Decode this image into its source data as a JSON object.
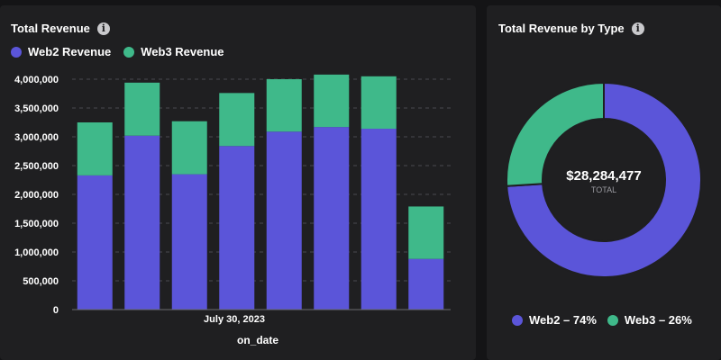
{
  "colors": {
    "web2": "#5b55d9",
    "web3": "#3fb98a",
    "background": "#1f1f21"
  },
  "left_card": {
    "title": "Total Revenue",
    "info_icon": "info-icon"
  },
  "right_card": {
    "title": "Total Revenue by Type",
    "info_icon": "info-icon",
    "center_value": "$28,284,477",
    "center_label": "TOTAL",
    "legend": [
      "Web2 – 74%",
      "Web3 – 26%"
    ]
  },
  "chart_data": [
    {
      "type": "bar",
      "stacked": true,
      "title": "Total Revenue",
      "xlabel": "on_date",
      "x_tick_label": "July 30, 2023",
      "ylabel": "",
      "ylim": [
        0,
        4000000
      ],
      "y_ticks": [
        "4,000,000",
        "3,500,000",
        "3,000,000",
        "2,500,000",
        "2,000,000",
        "1,500,000",
        "1,000,000",
        "500,000",
        "0"
      ],
      "y_tick_values": [
        4000000,
        3500000,
        3000000,
        2500000,
        2000000,
        1500000,
        1000000,
        500000,
        0
      ],
      "grid": true,
      "legend_position": "top-left",
      "categories": [
        "1",
        "2",
        "3",
        "4",
        "5",
        "6",
        "7",
        "8"
      ],
      "series": [
        {
          "name": "Web2 Revenue",
          "color": "#5b55d9",
          "values": [
            2330000,
            3020000,
            2350000,
            2840000,
            3090000,
            3170000,
            3140000,
            880000
          ]
        },
        {
          "name": "Web3 Revenue",
          "color": "#3fb98a",
          "values": [
            920000,
            920000,
            920000,
            920000,
            910000,
            910000,
            910000,
            910000
          ]
        }
      ]
    },
    {
      "type": "pie",
      "donut": true,
      "title": "Total Revenue by Type",
      "labels": [
        "Web2",
        "Web3"
      ],
      "values": [
        74,
        26
      ],
      "colors": [
        "#5b55d9",
        "#3fb98a"
      ],
      "legend_position": "bottom"
    }
  ]
}
